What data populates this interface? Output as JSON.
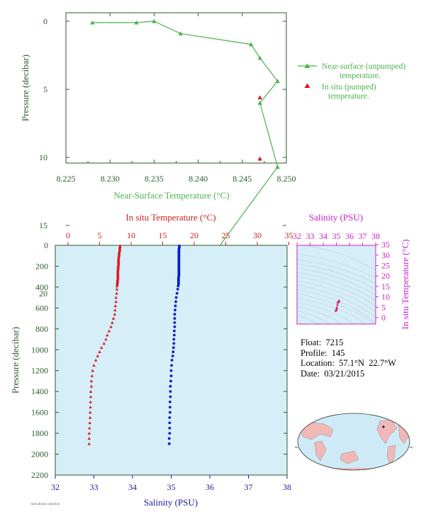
{
  "chart_data": [
    {
      "type": "line",
      "xlabel": "Near-Surface Temperature (°C)",
      "ylabel": "Pressure (decibar)",
      "xlim": [
        8.225,
        8.25
      ],
      "ylim": [
        0,
        22
      ],
      "x_ticks": [
        "8.225",
        "8.230",
        "8.235",
        "8.240",
        "8.245",
        "8.250"
      ],
      "y_ticks": [
        "0",
        "5",
        "10",
        "15",
        "20"
      ],
      "grid": false,
      "legend_position": "right",
      "colors": {
        "near_surface": "#4cb24c",
        "in_situ": "#e0141e",
        "axis": "#2d5a2d"
      },
      "series": [
        {
          "name": "Near-surface (unpumped) temperature.",
          "marker": "triangle",
          "points": [
            {
              "x": 8.228,
              "y": 0.1
            },
            {
              "x": 8.233,
              "y": 0.1
            },
            {
              "x": 8.235,
              "y": 0.0
            },
            {
              "x": 8.238,
              "y": 0.9
            },
            {
              "x": 8.246,
              "y": 1.7
            },
            {
              "x": 8.247,
              "y": 2.7
            },
            {
              "x": 8.249,
              "y": 4.4
            },
            {
              "x": 8.247,
              "y": 6.0
            },
            {
              "x": 8.249,
              "y": 10.7
            },
            {
              "x": 8.238,
              "y": 20.4
            }
          ]
        },
        {
          "name": "In situ (pumped) temperature.",
          "marker": "triangle",
          "points": [
            {
              "x": 8.247,
              "y": 5.6
            },
            {
              "x": 8.247,
              "y": 10.1
            },
            {
              "x": 8.24,
              "y": 19.9
            }
          ]
        }
      ]
    },
    {
      "type": "scatter",
      "x_top_label": "In situ Temperature (°C)",
      "x_bottom_label": "Salinity (PSU)",
      "ylabel": "Pressure (decibar)",
      "x_top_lim": [
        0,
        35
      ],
      "x_bottom_lim": [
        32,
        38
      ],
      "ylim": [
        0,
        2200
      ],
      "x_top_ticks": [
        "0",
        "5",
        "10",
        "15",
        "20",
        "25",
        "30",
        "35"
      ],
      "x_bottom_ticks": [
        "32",
        "33",
        "34",
        "35",
        "36",
        "37",
        "38"
      ],
      "y_ticks": [
        "0",
        "200",
        "400",
        "600",
        "800",
        "1000",
        "1200",
        "1400",
        "1600",
        "1800",
        "2000",
        "2200"
      ],
      "background": "#d5eef7",
      "colors": {
        "temperature": "#e0141e",
        "salinity": "#0a1ec8",
        "top_axis": "#cc2020",
        "bottom_axis": "#1a1aa0",
        "left_axis": "#2d5a2d"
      },
      "series": [
        {
          "name": "temperature",
          "marker": "triangle",
          "pressure": [
            5,
            15,
            25,
            35,
            45,
            55,
            65,
            75,
            85,
            95,
            105,
            115,
            125,
            135,
            145,
            155,
            165,
            175,
            185,
            195,
            205,
            215,
            225,
            235,
            245,
            255,
            265,
            275,
            285,
            295,
            305,
            315,
            325,
            335,
            345,
            355,
            365,
            375,
            390,
            420,
            460,
            500,
            540,
            580,
            620,
            660,
            700,
            740,
            780,
            820,
            860,
            900,
            940,
            980,
            1020,
            1060,
            1100,
            1150,
            1200,
            1250,
            1300,
            1350,
            1400,
            1450,
            1500,
            1550,
            1600,
            1650,
            1700,
            1750,
            1800,
            1850,
            1900
          ],
          "values": [
            8.24,
            8.24,
            8.2,
            8.2,
            8.2,
            8.15,
            8.1,
            8.1,
            8.1,
            8.1,
            8.05,
            8.05,
            8.0,
            8.0,
            8.0,
            8.0,
            8.0,
            8.0,
            8.0,
            7.95,
            7.95,
            7.95,
            7.95,
            7.9,
            7.9,
            7.9,
            7.9,
            7.9,
            7.9,
            7.9,
            7.9,
            7.9,
            7.85,
            7.85,
            7.85,
            7.85,
            7.8,
            7.8,
            7.75,
            7.75,
            7.7,
            7.6,
            7.6,
            7.5,
            7.45,
            7.4,
            7.2,
            7.0,
            6.8,
            6.5,
            6.2,
            6.0,
            5.7,
            5.3,
            5.0,
            4.7,
            4.4,
            4.1,
            3.9,
            3.8,
            3.7,
            3.7,
            3.6,
            3.6,
            3.55,
            3.55,
            3.5,
            3.5,
            3.45,
            3.4,
            3.35,
            3.35,
            3.35
          ]
        },
        {
          "name": "salinity",
          "marker": "circle",
          "pressure": [
            5,
            15,
            25,
            35,
            45,
            55,
            65,
            75,
            85,
            95,
            105,
            115,
            125,
            135,
            145,
            155,
            165,
            175,
            185,
            195,
            205,
            215,
            225,
            235,
            245,
            255,
            265,
            275,
            285,
            295,
            305,
            315,
            325,
            335,
            345,
            355,
            365,
            375,
            390,
            420,
            460,
            500,
            540,
            580,
            620,
            660,
            700,
            740,
            780,
            820,
            860,
            900,
            940,
            980,
            1020,
            1060,
            1100,
            1150,
            1200,
            1250,
            1300,
            1350,
            1400,
            1450,
            1500,
            1550,
            1600,
            1650,
            1700,
            1750,
            1800,
            1850,
            1900
          ],
          "values": [
            35.21,
            35.21,
            35.21,
            35.2,
            35.2,
            35.2,
            35.2,
            35.2,
            35.2,
            35.2,
            35.2,
            35.2,
            35.2,
            35.2,
            35.2,
            35.2,
            35.2,
            35.2,
            35.2,
            35.2,
            35.2,
            35.2,
            35.2,
            35.2,
            35.2,
            35.2,
            35.2,
            35.2,
            35.2,
            35.2,
            35.19,
            35.19,
            35.19,
            35.19,
            35.19,
            35.19,
            35.19,
            35.19,
            35.18,
            35.17,
            35.15,
            35.13,
            35.12,
            35.11,
            35.1,
            35.09,
            35.09,
            35.09,
            35.09,
            35.08,
            35.08,
            35.07,
            35.07,
            35.06,
            35.05,
            35.04,
            35.02,
            35.01,
            35.0,
            35.0,
            34.99,
            34.98,
            34.98,
            34.98,
            34.97,
            34.97,
            34.97,
            34.96,
            34.96,
            34.96,
            34.96,
            34.95,
            34.95
          ]
        }
      ]
    },
    {
      "type": "scatter",
      "xlabel": "Salinity (PSU)",
      "ylabel": "In situ Temperature (°C)",
      "xlim": [
        32,
        38
      ],
      "ylim": [
        0,
        35
      ],
      "x_ticks": [
        "32",
        "33",
        "34",
        "35",
        "36",
        "37",
        "38"
      ],
      "y_ticks": [
        "0",
        "5",
        "10",
        "15",
        "20",
        "25",
        "30",
        "35"
      ],
      "colors": {
        "axis": "#cc22cc",
        "points": "#e0146e",
        "background": "#d5eef7"
      },
      "series": [
        {
          "name": "profile",
          "x": [
            34.95,
            34.96,
            34.97,
            34.98,
            35.0,
            35.02,
            35.05,
            35.08,
            35.1,
            35.13,
            35.17,
            35.19,
            35.2,
            35.21
          ],
          "y": [
            3.35,
            3.45,
            3.55,
            3.7,
            3.9,
            4.4,
            5.0,
            6.2,
            7.2,
            7.6,
            7.75,
            7.9,
            8.05,
            8.24
          ]
        }
      ]
    }
  ],
  "info": {
    "float": "Float:  7215",
    "profile": "Profile:  145",
    "location": "Location:  57.1°N  22.7°W",
    "date": "Date:  03/21/2015"
  },
  "credit": "NOC/BODC 03/2015"
}
